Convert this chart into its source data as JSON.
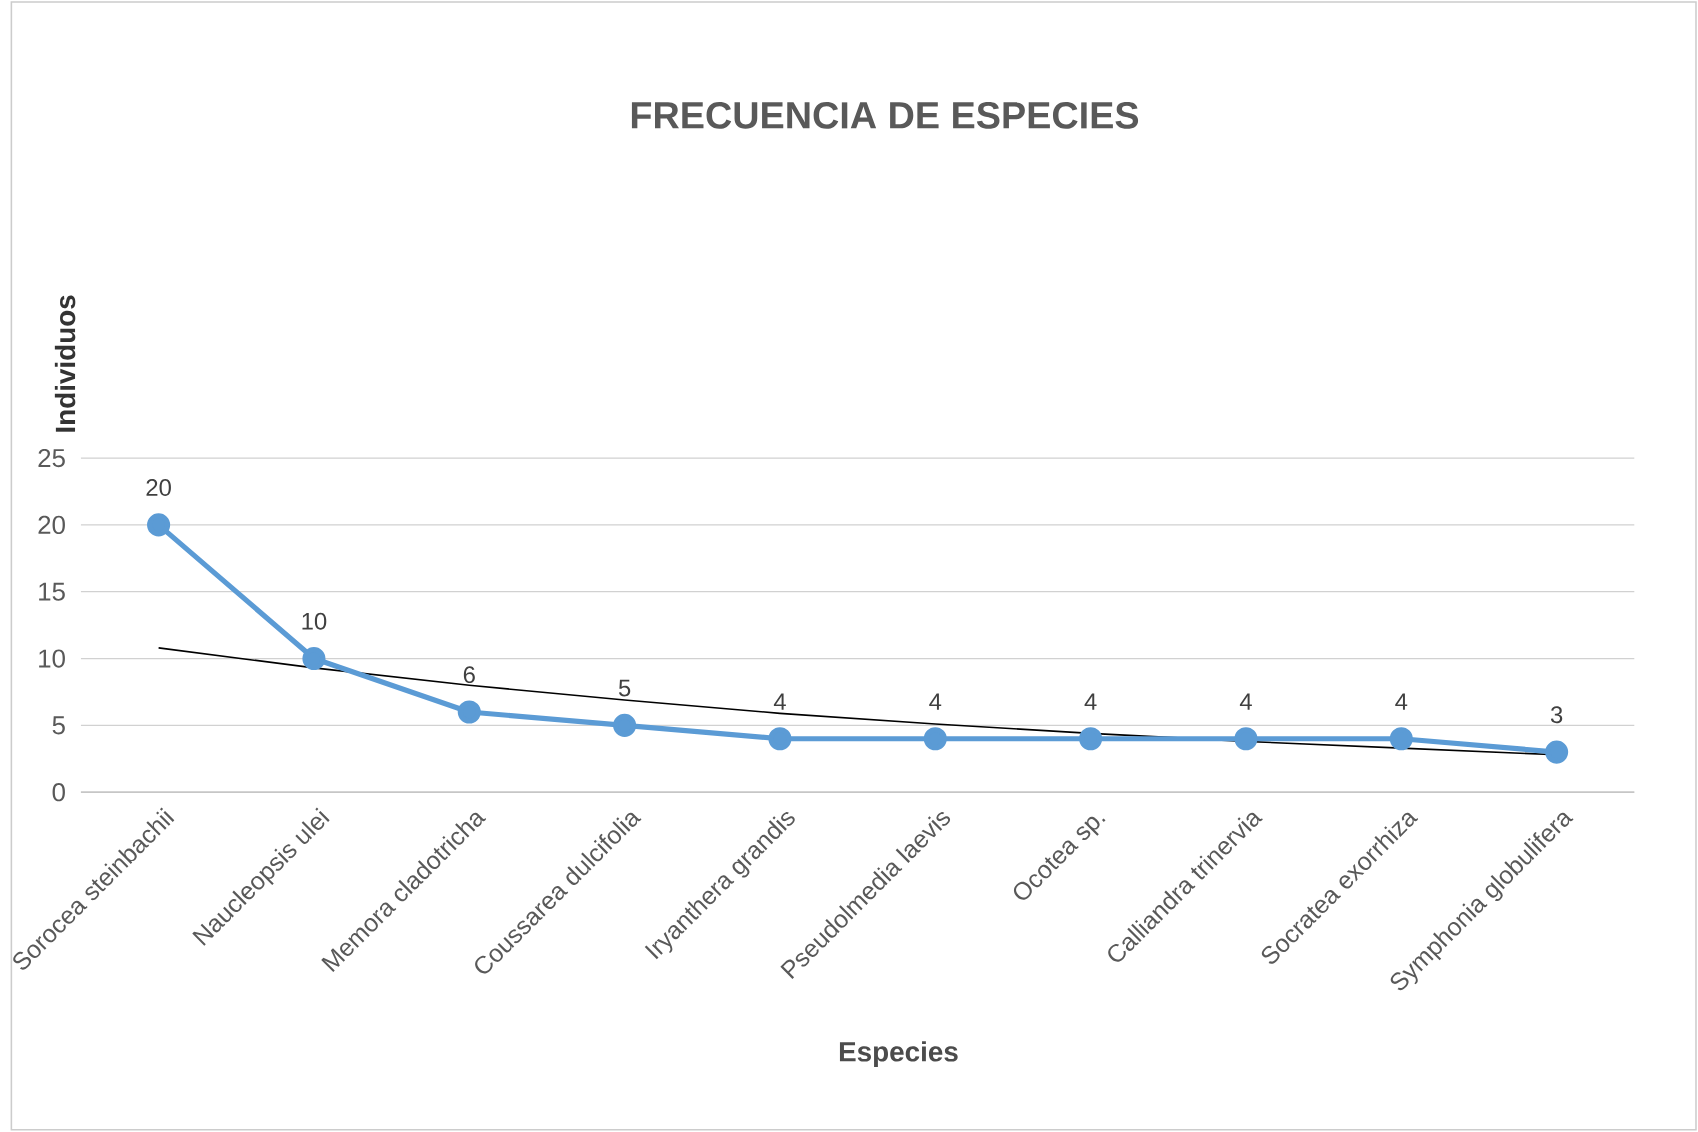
{
  "chart_data": {
    "type": "line",
    "title": "FRECUENCIA DE ESPECIES",
    "xlabel": "Especies",
    "ylabel": "Individuos",
    "categories": [
      "Sorocea steinbachii",
      "Naucleopsis ulei",
      "Memora cladotricha",
      "Coussarea dulcifolia",
      "Iryanthera grandis",
      "Pseudolmedia laevis",
      "Ocotea sp.",
      "Calliandra trinervia",
      "Socratea exorrhiza",
      "Symphonia globulifera"
    ],
    "series": [
      {
        "color": "#5b9bd5",
        "marker": "circle",
        "values": [
          20,
          10,
          6,
          5,
          4,
          4,
          4,
          4,
          4,
          3
        ],
        "value_labels": [
          "20",
          "10",
          "6",
          "5",
          "4",
          "4",
          "4",
          "4",
          "4",
          "3"
        ]
      },
      {
        "color": "#000000",
        "marker": "none",
        "values": [
          10.8,
          9.3,
          8.0,
          6.9,
          5.9,
          5.1,
          4.4,
          3.8,
          3.3,
          2.8
        ]
      }
    ],
    "ylim": [
      0,
      25
    ],
    "yticks": [
      0,
      5,
      10,
      15,
      20,
      25
    ],
    "grid": "y"
  }
}
